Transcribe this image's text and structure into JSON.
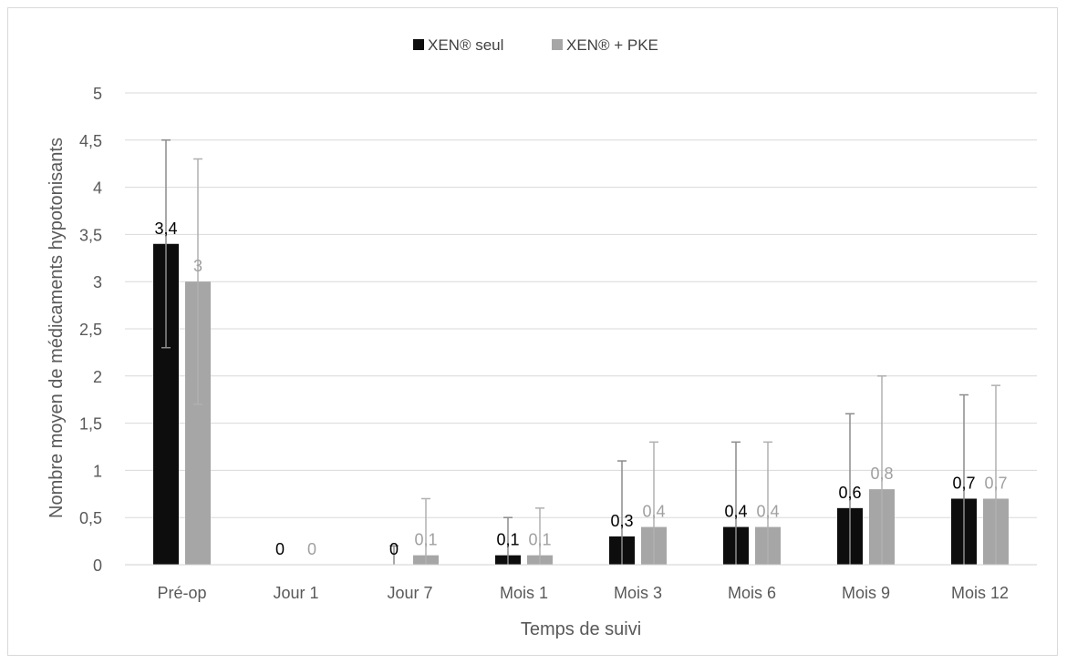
{
  "chart_data": {
    "type": "bar",
    "title": "",
    "xlabel": "Temps de suivi",
    "ylabel": "Nombre moyen de médicaments hypotonisants",
    "ylim": [
      0,
      5
    ],
    "yticks": [
      "0",
      "0,5",
      "1",
      "1,5",
      "2",
      "2,5",
      "3",
      "3,5",
      "4",
      "4,5",
      "5"
    ],
    "grid": true,
    "legend_position": "top-center",
    "categories": [
      "Pré-op",
      "Jour 1",
      "Jour 7",
      "Mois 1",
      "Mois 3",
      "Mois 6",
      "Mois 9",
      "Mois 12"
    ],
    "series": [
      {
        "name": "XEN® seul",
        "color": "#0d0d0d",
        "label_color": "#000000",
        "values": [
          3.4,
          0,
          0,
          0.1,
          0.3,
          0.4,
          0.6,
          0.7
        ],
        "labels": [
          "3,4",
          "0",
          "0",
          "0,1",
          "0,3",
          "0,4",
          "0,6",
          "0,7"
        ],
        "error": [
          1.1,
          0,
          0.2,
          0.4,
          0.8,
          0.9,
          1.0,
          1.1
        ],
        "error_bar_color": "#8c8c8c"
      },
      {
        "name": "XEN® + PKE",
        "color": "#a6a6a6",
        "label_color": "#a0a0a0",
        "values": [
          3,
          0,
          0.1,
          0.1,
          0.4,
          0.4,
          0.8,
          0.7
        ],
        "labels": [
          "3",
          "0",
          "0,1",
          "0,1",
          "0,4",
          "0,4",
          "0,8",
          "0,7"
        ],
        "error": [
          1.3,
          0,
          0.6,
          0.5,
          0.9,
          0.9,
          1.2,
          1.2
        ],
        "error_bar_color": "#b0b0b0"
      }
    ]
  }
}
